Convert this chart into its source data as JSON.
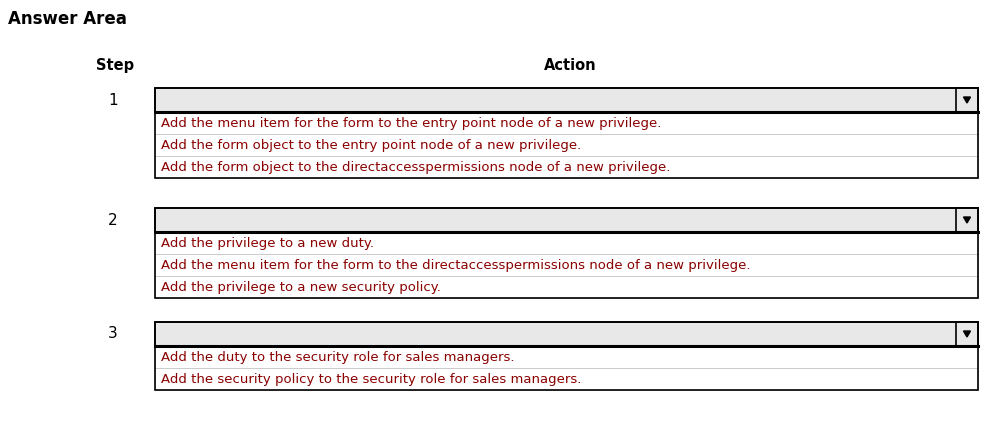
{
  "title": "Answer Area",
  "col_step": "Step",
  "col_action": "Action",
  "background_color": "#ffffff",
  "title_fontsize": 12,
  "header_fontsize": 10.5,
  "item_fontsize": 9.5,
  "step_label_color": "#000000",
  "item_text_color": "#8B0000",
  "dropdown_bg": "#e8e8e8",
  "dropdown_border": "#000000",
  "item_bg": "#ffffff",
  "item_border": "#c0c0c0",
  "groups": [
    {
      "step": "1",
      "items": [
        "Add the menu item for the form to the entry point node of a new privilege.",
        "Add the form object to the entry point node of a new privilege.",
        "Add the form object to the directaccesspermissions node of a new privilege."
      ]
    },
    {
      "step": "2",
      "items": [
        "Add the privilege to a new duty.",
        "Add the menu item for the form to the directaccesspermissions node of a new privilege.",
        "Add the privilege to a new security policy."
      ]
    },
    {
      "step": "3",
      "items": [
        "Add the duty to the security role for sales managers.",
        "Add the security policy to the security role for sales managers."
      ]
    }
  ],
  "fig_width": 9.91,
  "fig_height": 4.28,
  "dpi": 100
}
